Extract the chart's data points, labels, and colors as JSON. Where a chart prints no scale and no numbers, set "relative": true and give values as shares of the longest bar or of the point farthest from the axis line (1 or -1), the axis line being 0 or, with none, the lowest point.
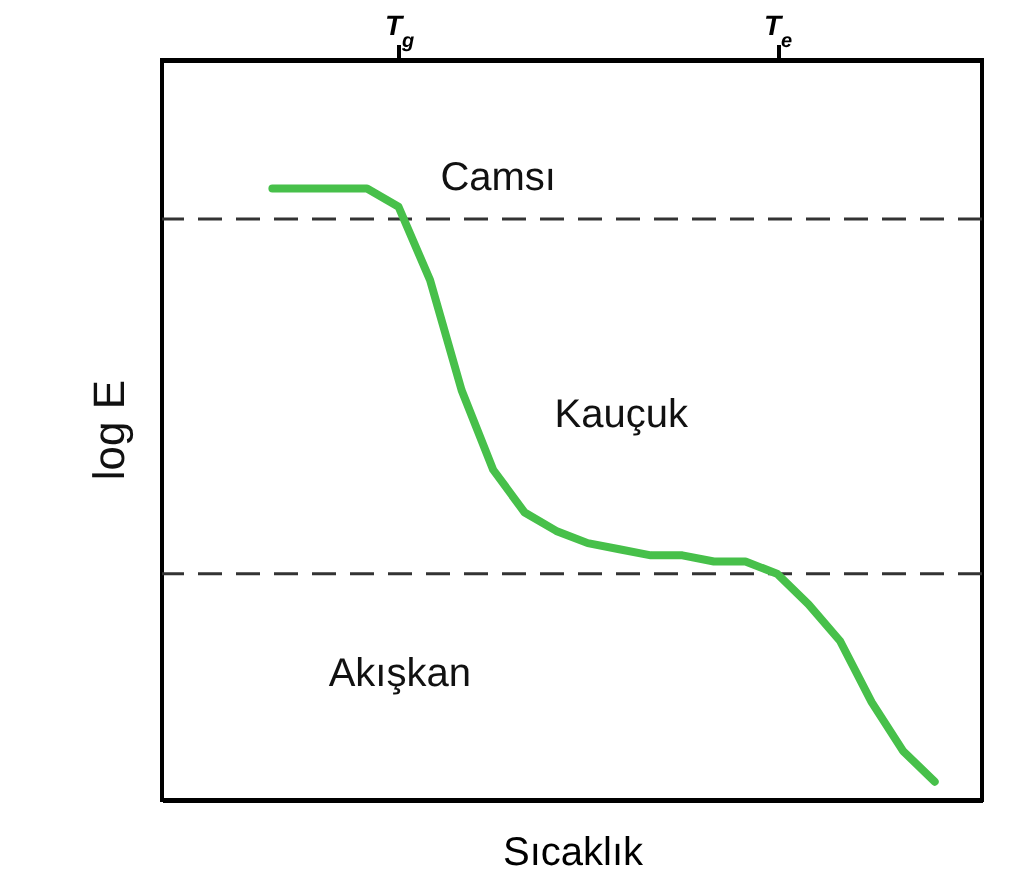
{
  "chart_data": {
    "type": "line",
    "relative": true,
    "xlabel": "Sıcaklık",
    "ylabel": "log E",
    "categories": [
      null,
      null,
      null,
      null,
      null,
      null,
      null,
      "T$_{g}$",
      null,
      null,
      null,
      null,
      null,
      null,
      null,
      null,
      null,
      null,
      null,
      "T$_{e}$",
      null,
      null,
      null,
      null,
      null,
      null
    ],
    "series": [
      {
        "color": "#47c04a",
        "values": [
          null,
          null,
          null,
          1.0,
          1.0,
          1.0,
          1.0,
          0.97,
          0.85,
          0.67,
          0.54,
          0.47,
          0.44,
          0.42,
          0.41,
          0.4,
          0.4,
          0.39,
          0.39,
          0.37,
          0.32,
          0.26,
          0.16,
          0.08,
          0.03,
          null
        ]
      }
    ],
    "ref_lines": [
      {
        "axis": "y",
        "value": 0.95,
        "line_style": "dashed",
        "color": "#333333"
      },
      {
        "axis": "y",
        "value": 0.37,
        "line_style": "dashed",
        "color": "#333333"
      }
    ],
    "annotations": [
      "Camsı",
      "Kauçuk",
      "Akışkan"
    ],
    "grid": false,
    "marker": "none",
    "line_style": "solid"
  }
}
